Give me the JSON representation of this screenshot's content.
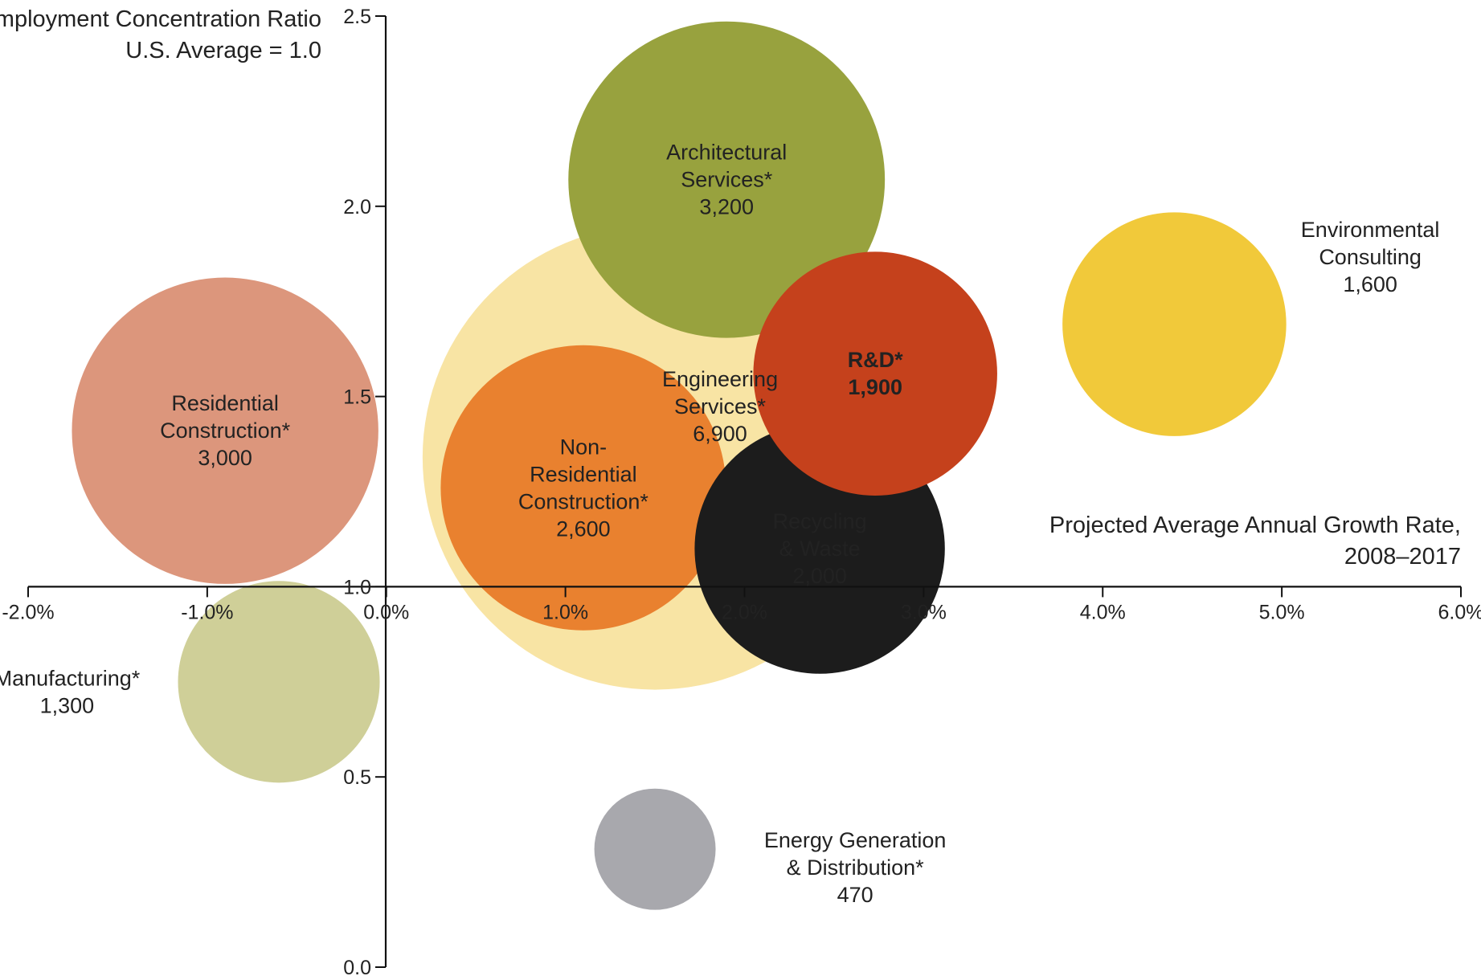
{
  "chart_data": {
    "type": "bubble",
    "ylabel_lines": [
      "Employment Concentration Ratio",
      "U.S. Average = 1.0"
    ],
    "xlabel_lines": [
      "Projected Average Annual Growth Rate,",
      "2008–2017"
    ],
    "xlim": [
      -2.0,
      6.0
    ],
    "ylim": [
      0.0,
      2.5
    ],
    "x_ticks": [
      {
        "value": -2.0,
        "label": "-2.0%"
      },
      {
        "value": -1.0,
        "label": "-1.0%"
      },
      {
        "value": 0.0,
        "label": "0.0%"
      },
      {
        "value": 1.0,
        "label": "1.0%"
      },
      {
        "value": 2.0,
        "label": "2.0%"
      },
      {
        "value": 3.0,
        "label": "3.0%"
      },
      {
        "value": 4.0,
        "label": "4.0%"
      },
      {
        "value": 5.0,
        "label": "5.0%"
      },
      {
        "value": 6.0,
        "label": "6.0%"
      }
    ],
    "y_ticks": [
      {
        "value": 0.0,
        "label": "0.0"
      },
      {
        "value": 0.5,
        "label": "0.5"
      },
      {
        "value": 1.0,
        "label": "1.0"
      },
      {
        "value": 1.5,
        "label": "1.5"
      },
      {
        "value": 2.0,
        "label": "2.0"
      },
      {
        "value": 2.5,
        "label": "2.5"
      }
    ],
    "grid": false,
    "legend": "none",
    "bubbles": [
      {
        "name": "Engineering Services*",
        "label_lines": [
          "Engineering",
          "Services*",
          "6,900"
        ],
        "x": 1.5,
        "y": 1.34,
        "size": 6900,
        "color": "#f8e4a4",
        "label_color": "#222222",
        "label_placement": "inside-right"
      },
      {
        "name": "Architectural Services*",
        "label_lines": [
          "Architectural",
          "Services*",
          "3,200"
        ],
        "x": 1.9,
        "y": 2.07,
        "size": 3200,
        "color": "#98a23e",
        "label_color": "#222222",
        "label_placement": "center"
      },
      {
        "name": "Residential Construction*",
        "label_lines": [
          "Residential",
          "Construction*",
          "3,000"
        ],
        "x": -0.9,
        "y": 1.41,
        "size": 3000,
        "color": "#dc967c",
        "label_color": "#222222",
        "label_placement": "center"
      },
      {
        "name": "Non-Residential Construction*",
        "label_lines": [
          "Non-",
          "Residential",
          "Construction*",
          "2,600"
        ],
        "x": 1.1,
        "y": 1.26,
        "size": 2600,
        "color": "#e9812f",
        "label_color": "#222222",
        "label_placement": "center"
      },
      {
        "name": "Recycling & Waste",
        "label_lines": [
          "Recycling",
          "& Waste",
          "2,000"
        ],
        "x": 2.42,
        "y": 1.1,
        "size": 2000,
        "color": "#1c1c1c",
        "label_color": "#ffffff",
        "label_placement": "center"
      },
      {
        "name": "R&D*",
        "label_lines": [
          "R&D*",
          "1,900"
        ],
        "x": 2.73,
        "y": 1.56,
        "size": 1900,
        "color": "#c5411c",
        "label_color": "#ffffff",
        "label_placement": "center"
      },
      {
        "name": "Environmental Consulting",
        "label_lines": [
          "Environmental",
          "Consulting",
          "1,600"
        ],
        "x": 4.4,
        "y": 1.69,
        "size": 1600,
        "color": "#f1c93a",
        "label_color": "#222222",
        "label_placement": "upper-right"
      },
      {
        "name": "Manufacturing*",
        "label_lines": [
          "Manufacturing*",
          "1,300"
        ],
        "x": -0.6,
        "y": 0.75,
        "size": 1300,
        "color": "#cfcf98",
        "label_color": "#222222",
        "label_placement": "left"
      },
      {
        "name": "Energy Generation & Distribution*",
        "label_lines": [
          "Energy Generation",
          "& Distribution*",
          "470"
        ],
        "x": 1.5,
        "y": 0.31,
        "size": 470,
        "color": "#a8a8ad",
        "label_color": "#222222",
        "label_placement": "right"
      }
    ]
  }
}
